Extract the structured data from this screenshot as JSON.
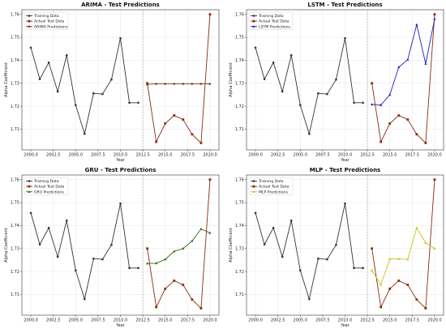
{
  "chart_data": [
    {
      "type": "line",
      "title": "ARIMA - Test Predictions",
      "xlabel": "Year",
      "ylabel": "Alpha Coefficient",
      "xlim": [
        1999,
        2021
      ],
      "ylim": [
        1.701,
        1.762
      ],
      "xticks": [
        "2000.0",
        "2002.5",
        "2005.0",
        "2007.5",
        "2010.0",
        "2012.5",
        "2015.0",
        "2017.5",
        "2020.0"
      ],
      "yticks": [
        "1.71",
        "1.72",
        "1.73",
        "1.74",
        "1.75",
        "1.76"
      ],
      "split_x": 2012.5,
      "legend_position": "top-left",
      "series": [
        {
          "name": "Training Data",
          "color": "#333333",
          "marker": "circle",
          "x": [
            2000,
            2001,
            2002,
            2003,
            2004,
            2005,
            2006,
            2007,
            2008,
            2009,
            2010,
            2011,
            2012
          ],
          "y": [
            1.7455,
            1.7318,
            1.739,
            1.7264,
            1.7422,
            1.7205,
            1.708,
            1.7256,
            1.7253,
            1.7316,
            1.7496,
            1.7215,
            1.7215
          ]
        },
        {
          "name": "Actual Test Data",
          "color": "#8b2c10",
          "marker": "square",
          "x": [
            2013,
            2014,
            2015,
            2016,
            2017,
            2018,
            2019,
            2020
          ],
          "y": [
            1.73,
            1.7045,
            1.7125,
            1.716,
            1.7142,
            1.7078,
            1.704,
            1.76
          ]
        },
        {
          "name": "ARIMA Predictions",
          "color": "#7a2e0e",
          "marker": "triangle",
          "x": [
            2013,
            2014,
            2015,
            2016,
            2017,
            2018,
            2019,
            2020
          ],
          "y": [
            1.7295,
            1.7298,
            1.7298,
            1.7298,
            1.7298,
            1.7298,
            1.7298,
            1.7298
          ]
        }
      ]
    },
    {
      "type": "line",
      "title": "LSTM - Test Predictions",
      "xlabel": "Year",
      "ylabel": "Alpha Coefficient",
      "xlim": [
        1999,
        2021
      ],
      "ylim": [
        1.701,
        1.762
      ],
      "xticks": [
        "2000.0",
        "2002.5",
        "2005.0",
        "2007.5",
        "2010.0",
        "2012.5",
        "2015.0",
        "2017.5",
        "2020.0"
      ],
      "yticks": [
        "1.71",
        "1.72",
        "1.73",
        "1.74",
        "1.75",
        "1.76"
      ],
      "split_x": 2012.5,
      "legend_position": "top-left",
      "series": [
        {
          "name": "Training Data",
          "color": "#333333",
          "marker": "circle",
          "x": [
            2000,
            2001,
            2002,
            2003,
            2004,
            2005,
            2006,
            2007,
            2008,
            2009,
            2010,
            2011,
            2012
          ],
          "y": [
            1.7455,
            1.7318,
            1.739,
            1.7264,
            1.7422,
            1.7205,
            1.708,
            1.7256,
            1.7253,
            1.7316,
            1.7496,
            1.7215,
            1.7215
          ]
        },
        {
          "name": "Actual Test Data",
          "color": "#8b2c10",
          "marker": "square",
          "x": [
            2013,
            2014,
            2015,
            2016,
            2017,
            2018,
            2019,
            2020
          ],
          "y": [
            1.73,
            1.7045,
            1.7125,
            1.716,
            1.7142,
            1.7078,
            1.704,
            1.76
          ]
        },
        {
          "name": "LSTM Predictions",
          "color": "#1f1fb4",
          "marker": "triangle",
          "x": [
            2013,
            2014,
            2015,
            2016,
            2017,
            2018,
            2019,
            2020
          ],
          "y": [
            1.7208,
            1.7205,
            1.725,
            1.737,
            1.7403,
            1.7555,
            1.7385,
            1.758
          ]
        }
      ]
    },
    {
      "type": "line",
      "title": "GRU - Test Predictions",
      "xlabel": "Year",
      "ylabel": "Alpha Coefficient",
      "xlim": [
        1999,
        2021
      ],
      "ylim": [
        1.701,
        1.762
      ],
      "xticks": [
        "2000.0",
        "2002.5",
        "2005.0",
        "2007.5",
        "2010.0",
        "2012.5",
        "2015.0",
        "2017.5",
        "2020.0"
      ],
      "yticks": [
        "1.71",
        "1.72",
        "1.73",
        "1.74",
        "1.75",
        "1.76"
      ],
      "split_x": 2012.5,
      "legend_position": "top-left",
      "series": [
        {
          "name": "Training Data",
          "color": "#333333",
          "marker": "circle",
          "x": [
            2000,
            2001,
            2002,
            2003,
            2004,
            2005,
            2006,
            2007,
            2008,
            2009,
            2010,
            2011,
            2012
          ],
          "y": [
            1.7455,
            1.7318,
            1.739,
            1.7264,
            1.7422,
            1.7205,
            1.708,
            1.7256,
            1.7253,
            1.7316,
            1.7496,
            1.7215,
            1.7215
          ]
        },
        {
          "name": "Actual Test Data",
          "color": "#8b2c10",
          "marker": "square",
          "x": [
            2013,
            2014,
            2015,
            2016,
            2017,
            2018,
            2019,
            2020
          ],
          "y": [
            1.73,
            1.7045,
            1.7125,
            1.716,
            1.7142,
            1.7078,
            1.704,
            1.76
          ]
        },
        {
          "name": "GRU Predictions",
          "color": "#2e6b12",
          "marker": "triangle",
          "x": [
            2013,
            2014,
            2015,
            2016,
            2017,
            2018,
            2019,
            2020
          ],
          "y": [
            1.7235,
            1.7236,
            1.7253,
            1.7288,
            1.73,
            1.7333,
            1.7385,
            1.7368
          ]
        }
      ]
    },
    {
      "type": "line",
      "title": "MLP - Test Predictions",
      "xlabel": "Year",
      "ylabel": "Alpha Coefficient",
      "xlim": [
        1999,
        2021
      ],
      "ylim": [
        1.701,
        1.762
      ],
      "xticks": [
        "2000.0",
        "2002.5",
        "2005.0",
        "2007.5",
        "2010.0",
        "2012.5",
        "2015.0",
        "2017.5",
        "2020.0"
      ],
      "yticks": [
        "1.71",
        "1.72",
        "1.73",
        "1.74",
        "1.75",
        "1.76"
      ],
      "split_x": 2012.5,
      "legend_position": "top-left",
      "series": [
        {
          "name": "Training Data",
          "color": "#333333",
          "marker": "circle",
          "x": [
            2000,
            2001,
            2002,
            2003,
            2004,
            2005,
            2006,
            2007,
            2008,
            2009,
            2010,
            2011,
            2012
          ],
          "y": [
            1.7455,
            1.7318,
            1.739,
            1.7264,
            1.7422,
            1.7205,
            1.708,
            1.7256,
            1.7253,
            1.7316,
            1.7496,
            1.7215,
            1.7215
          ]
        },
        {
          "name": "Actual Test Data",
          "color": "#8b2c10",
          "marker": "square",
          "x": [
            2013,
            2014,
            2015,
            2016,
            2017,
            2018,
            2019,
            2020
          ],
          "y": [
            1.73,
            1.7045,
            1.7125,
            1.716,
            1.7142,
            1.7078,
            1.704,
            1.76
          ]
        },
        {
          "name": "MLP Predictions",
          "color": "#c8c01a",
          "marker": "triangle",
          "x": [
            2013,
            2014,
            2015,
            2016,
            2017,
            2018,
            2019,
            2020
          ],
          "y": [
            1.7205,
            1.7142,
            1.7255,
            1.7255,
            1.7253,
            1.739,
            1.7325,
            1.73
          ]
        }
      ]
    }
  ]
}
